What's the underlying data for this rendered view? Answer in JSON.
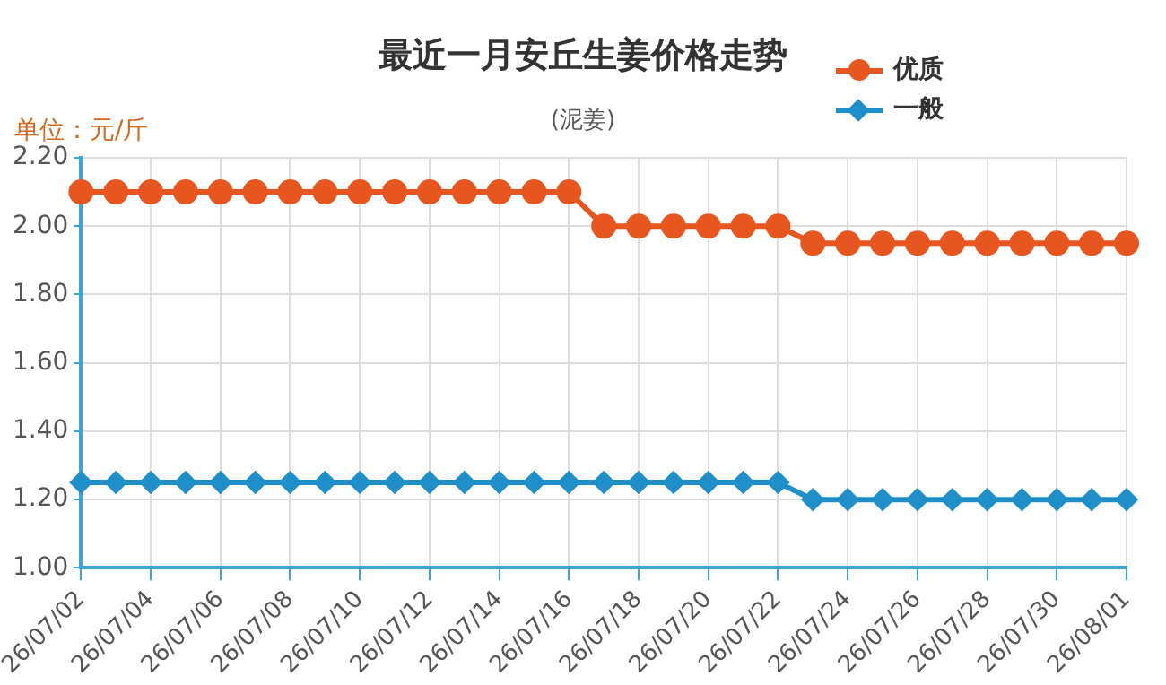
{
  "chart_data": {
    "type": "line",
    "title": "最近一月安丘生姜价格走势",
    "subtitle": "(泥姜)",
    "ylabel": "单位：元/斤",
    "categories": [
      "26/07/02",
      null,
      "26/07/04",
      null,
      "26/07/06",
      null,
      "26/07/08",
      null,
      "26/07/10",
      null,
      "26/07/12",
      null,
      "26/07/14",
      null,
      "26/07/16",
      null,
      "26/07/18",
      null,
      "26/07/20",
      null,
      "26/07/22",
      null,
      "26/07/24",
      null,
      "26/07/26",
      null,
      "26/07/28",
      null,
      "26/07/30",
      null,
      "26/08/01"
    ],
    "series": [
      {
        "name": "优质",
        "color": "#e8561f",
        "marker": "circle",
        "values": [
          2.1,
          2.1,
          2.1,
          2.1,
          2.1,
          2.1,
          2.1,
          2.1,
          2.1,
          2.1,
          2.1,
          2.1,
          2.1,
          2.1,
          2.1,
          2.0,
          2.0,
          2.0,
          2.0,
          2.0,
          2.0,
          1.95,
          1.95,
          1.95,
          1.95,
          1.95,
          1.95,
          1.95,
          1.95,
          1.95,
          1.95
        ]
      },
      {
        "name": "一般",
        "color": "#1f8fc9",
        "marker": "diamond",
        "values": [
          1.25,
          1.25,
          1.25,
          1.25,
          1.25,
          1.25,
          1.25,
          1.25,
          1.25,
          1.25,
          1.25,
          1.25,
          1.25,
          1.25,
          1.25,
          1.25,
          1.25,
          1.25,
          1.25,
          1.25,
          1.25,
          1.2,
          1.2,
          1.2,
          1.2,
          1.2,
          1.2,
          1.2,
          1.2,
          1.2,
          1.2
        ]
      }
    ],
    "ylim": [
      1.0,
      2.2
    ],
    "yticks": [
      {
        "value": 1.0,
        "label": "1.00"
      },
      {
        "value": 1.2,
        "label": "1.20"
      },
      {
        "value": 1.4,
        "label": "1.40"
      },
      {
        "value": 1.6,
        "label": "1.60"
      },
      {
        "value": 1.8,
        "label": "1.80"
      },
      {
        "value": 2.0,
        "label": "2.00"
      },
      {
        "value": 2.2,
        "label": "2.20"
      }
    ],
    "grid": true,
    "legend": "top right"
  }
}
